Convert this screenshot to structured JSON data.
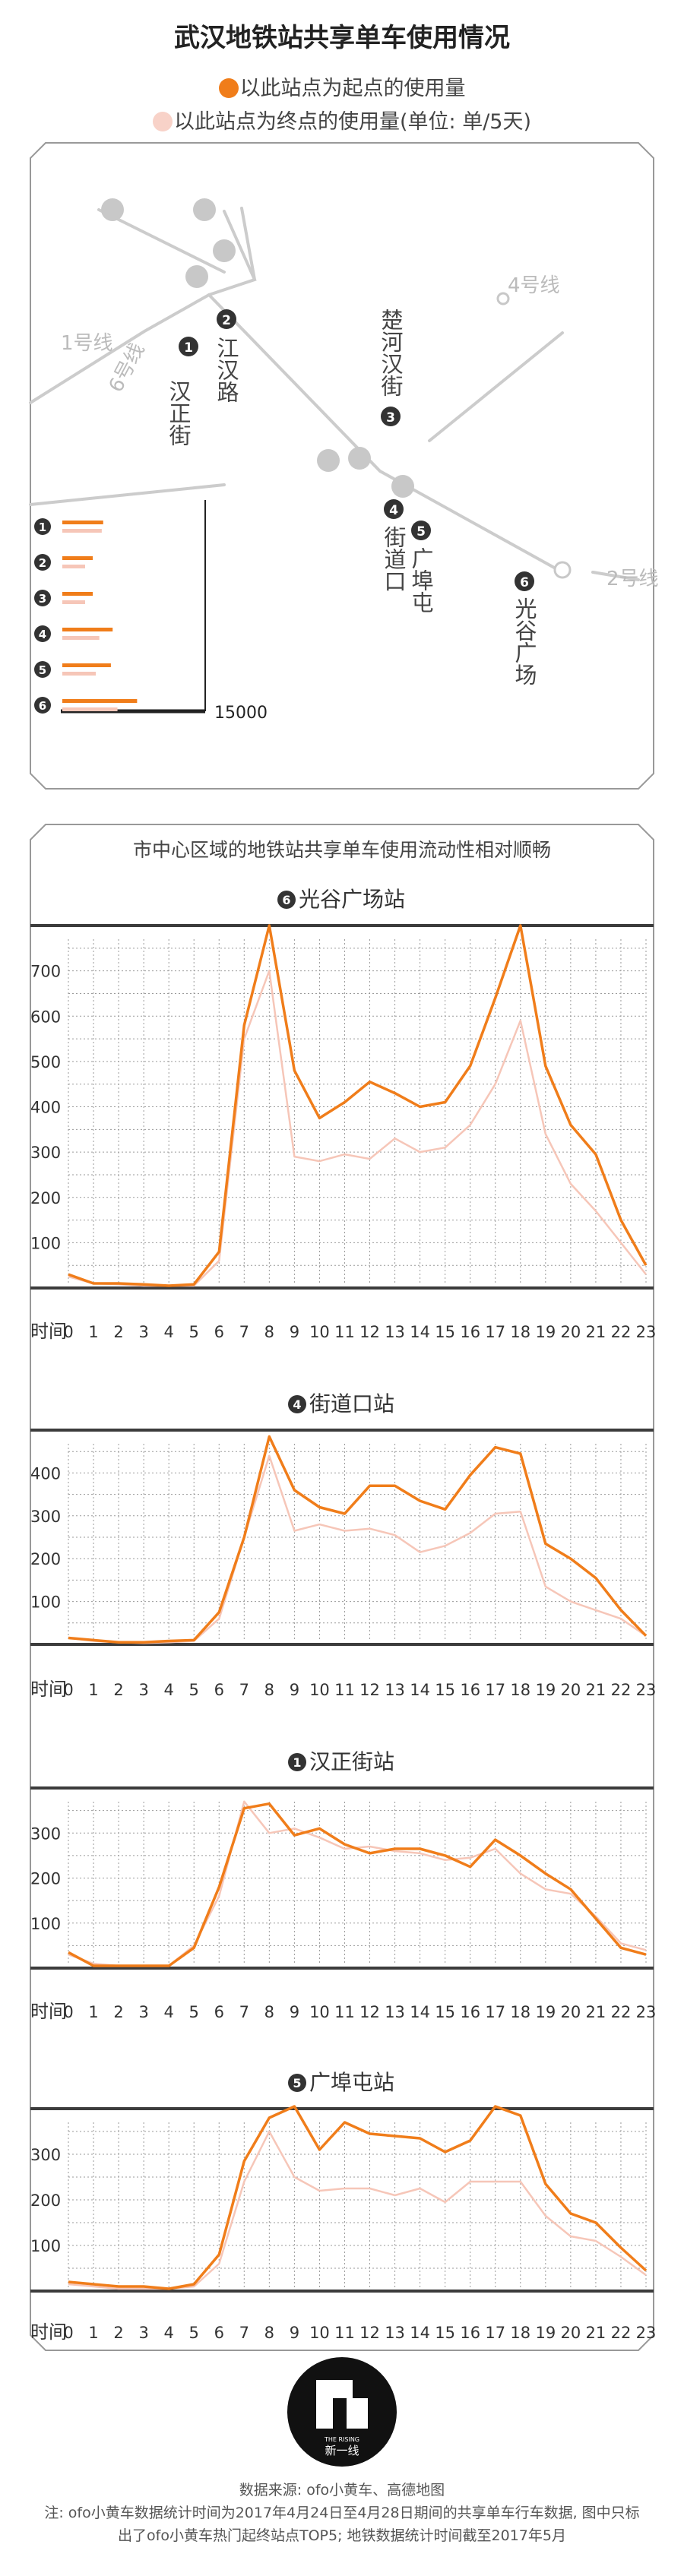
{
  "title": "武汉地铁站共享单车使用情况",
  "legend": {
    "origin_label": "以此站点为起点的使用量",
    "origin_color": "#f07d1a",
    "dest_label": "以此站点为终点的使用量(单位: 单/5天)",
    "dest_color": "#f8d2c8"
  },
  "map": {
    "lines": [
      "1号线",
      "2号线",
      "4号线",
      "6号线"
    ],
    "stations": [
      {
        "num": "1",
        "name": "汉正街"
      },
      {
        "num": "2",
        "name": "江汉路"
      },
      {
        "num": "3",
        "name": "楚河汉街"
      },
      {
        "num": "4",
        "name": "街道口"
      },
      {
        "num": "5",
        "name": "广埠屯"
      },
      {
        "num": "6",
        "name": "光谷广场"
      }
    ],
    "bar_scale_label": "15000"
  },
  "subtitle": "市中心区域的地铁站共享单车使用流动性相对顺畅",
  "xaxis_label": "时间",
  "colors": {
    "origin": "#f07d1a",
    "dest": "#f6c6b8",
    "dark": "#3c3c3c",
    "grid": "#9a9a9a",
    "num_bg": "#333333"
  },
  "chart_data": [
    {
      "type": "line",
      "num": "6",
      "title": "光谷广场站",
      "x": [
        0,
        1,
        2,
        3,
        4,
        5,
        6,
        7,
        8,
        9,
        10,
        11,
        12,
        13,
        14,
        15,
        16,
        17,
        18,
        19,
        20,
        21,
        22,
        23
      ],
      "xticks": [
        "0",
        "1",
        "2",
        "3",
        "4",
        "5",
        "6",
        "7",
        "8",
        "9",
        "10",
        "11",
        "12",
        "13",
        "14",
        "15",
        "16",
        "17",
        "18",
        "19",
        "20",
        "21",
        "22",
        "23"
      ],
      "yticks": [
        100,
        200,
        300,
        400,
        500,
        600,
        700
      ],
      "ylim": [
        0,
        800
      ],
      "series": [
        {
          "values": [
            30,
            10,
            10,
            8,
            5,
            8,
            80,
            580,
            800,
            480,
            375,
            410,
            455,
            430,
            400,
            410,
            490,
            640,
            800,
            490,
            360,
            295,
            150,
            50
          ]
        },
        {
          "values": [
            25,
            10,
            8,
            5,
            5,
            5,
            60,
            550,
            700,
            290,
            280,
            295,
            285,
            330,
            300,
            310,
            360,
            450,
            590,
            340,
            230,
            170,
            100,
            30
          ]
        }
      ]
    },
    {
      "type": "line",
      "num": "4",
      "title": "街道口站",
      "x": [
        0,
        1,
        2,
        3,
        4,
        5,
        6,
        7,
        8,
        9,
        10,
        11,
        12,
        13,
        14,
        15,
        16,
        17,
        18,
        19,
        20,
        21,
        22,
        23
      ],
      "xticks": [
        "0",
        "1",
        "2",
        "3",
        "4",
        "5",
        "6",
        "7",
        "8",
        "9",
        "10",
        "11",
        "12",
        "13",
        "14",
        "15",
        "16",
        "17",
        "18",
        "19",
        "20",
        "21",
        "22",
        "23"
      ],
      "yticks": [
        100,
        200,
        300,
        400
      ],
      "ylim": [
        0,
        500
      ],
      "series": [
        {
          "values": [
            15,
            10,
            5,
            5,
            8,
            10,
            75,
            250,
            485,
            360,
            320,
            305,
            370,
            370,
            335,
            315,
            395,
            460,
            445,
            235,
            200,
            155,
            80,
            20
          ]
        },
        {
          "values": [
            15,
            8,
            5,
            3,
            5,
            8,
            60,
            250,
            440,
            265,
            280,
            265,
            270,
            255,
            215,
            230,
            260,
            305,
            310,
            135,
            100,
            80,
            60,
            20
          ]
        }
      ]
    },
    {
      "type": "line",
      "num": "1",
      "title": "汉正街站",
      "x": [
        0,
        1,
        2,
        3,
        4,
        5,
        6,
        7,
        8,
        9,
        10,
        11,
        12,
        13,
        14,
        15,
        16,
        17,
        18,
        19,
        20,
        21,
        22,
        23
      ],
      "xticks": [
        "0",
        "1",
        "2",
        "3",
        "4",
        "5",
        "6",
        "7",
        "8",
        "9",
        "10",
        "11",
        "12",
        "13",
        "14",
        "15",
        "16",
        "17",
        "18",
        "19",
        "20",
        "21",
        "22",
        "23"
      ],
      "yticks": [
        100,
        200,
        300
      ],
      "ylim": [
        0,
        400
      ],
      "series": [
        {
          "values": [
            35,
            5,
            5,
            5,
            5,
            45,
            180,
            355,
            365,
            295,
            310,
            275,
            255,
            265,
            265,
            250,
            225,
            285,
            250,
            210,
            175,
            110,
            45,
            30
          ]
        },
        {
          "values": [
            30,
            10,
            5,
            5,
            5,
            50,
            160,
            370,
            300,
            310,
            290,
            265,
            270,
            260,
            255,
            240,
            245,
            265,
            210,
            175,
            165,
            115,
            55,
            40
          ]
        }
      ]
    },
    {
      "type": "line",
      "num": "5",
      "title": "广埠屯站",
      "x": [
        0,
        1,
        2,
        3,
        4,
        5,
        6,
        7,
        8,
        9,
        10,
        11,
        12,
        13,
        14,
        15,
        16,
        17,
        18,
        19,
        20,
        21,
        22,
        23
      ],
      "xticks": [
        "0",
        "1",
        "2",
        "3",
        "4",
        "5",
        "6",
        "7",
        "8",
        "9",
        "10",
        "11",
        "12",
        "13",
        "14",
        "15",
        "16",
        "17",
        "18",
        "19",
        "20",
        "21",
        "22",
        "23"
      ],
      "yticks": [
        100,
        200,
        300
      ],
      "ylim": [
        0,
        400
      ],
      "series": [
        {
          "values": [
            20,
            15,
            10,
            10,
            5,
            15,
            80,
            285,
            380,
            405,
            310,
            370,
            345,
            340,
            335,
            305,
            330,
            405,
            385,
            235,
            170,
            150,
            95,
            45
          ]
        },
        {
          "values": [
            15,
            10,
            5,
            5,
            5,
            10,
            60,
            240,
            350,
            250,
            220,
            225,
            225,
            210,
            225,
            195,
            240,
            240,
            240,
            165,
            120,
            110,
            75,
            35
          ]
        }
      ]
    }
  ],
  "footer": {
    "logo_text_en": "THE RISING",
    "logo_text_cn": "新一线",
    "source": "数据来源: ofo小黄车、高德地图",
    "note_line1": "注: ofo小黄车数据统计时间为2017年4月24日至4月28日期间的共享单车行车数据, 图中只标",
    "note_line2": "出了ofo小黄车热门起终站点TOP5; 地铁数据统计时间截至2017年5月"
  }
}
